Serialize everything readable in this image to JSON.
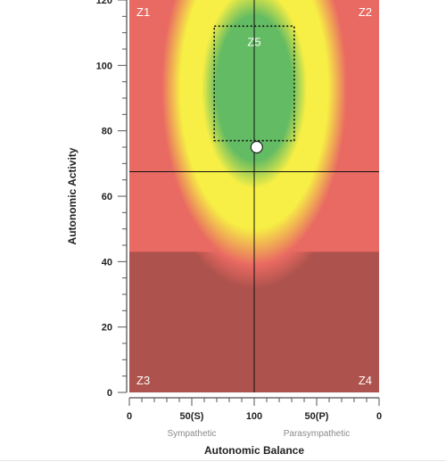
{
  "chart_data": {
    "type": "scatter",
    "xlabel": "Autonomic Balance",
    "ylabel": "Autonomic Activity",
    "x_ticks": [
      "0",
      "50(S)",
      "100",
      "50(P)",
      "0"
    ],
    "x_sublabels": [
      "Sympathetic",
      "Parasympathetic"
    ],
    "y_ticks": [
      0,
      20,
      40,
      60,
      80,
      100,
      120
    ],
    "ylim": [
      0,
      120
    ],
    "zones": [
      {
        "label": "Z1",
        "position": "top-left"
      },
      {
        "label": "Z2",
        "position": "top-right"
      },
      {
        "label": "Z3",
        "position": "bottom-left"
      },
      {
        "label": "Z4",
        "position": "bottom-right"
      },
      {
        "label": "Z5",
        "position": "center"
      }
    ],
    "target_box": {
      "x_min": 68,
      "x_max": 132,
      "y_min": 77,
      "y_max": 112
    },
    "crosshair": {
      "x": 100,
      "y": 67.5
    },
    "point": {
      "x": 102,
      "y": 75
    },
    "colors": {
      "high_zone": "#e96a62",
      "low_zone": "#ad524c",
      "mid_zone": "#f7ef45",
      "optimal_zone": "#63bb63"
    }
  }
}
